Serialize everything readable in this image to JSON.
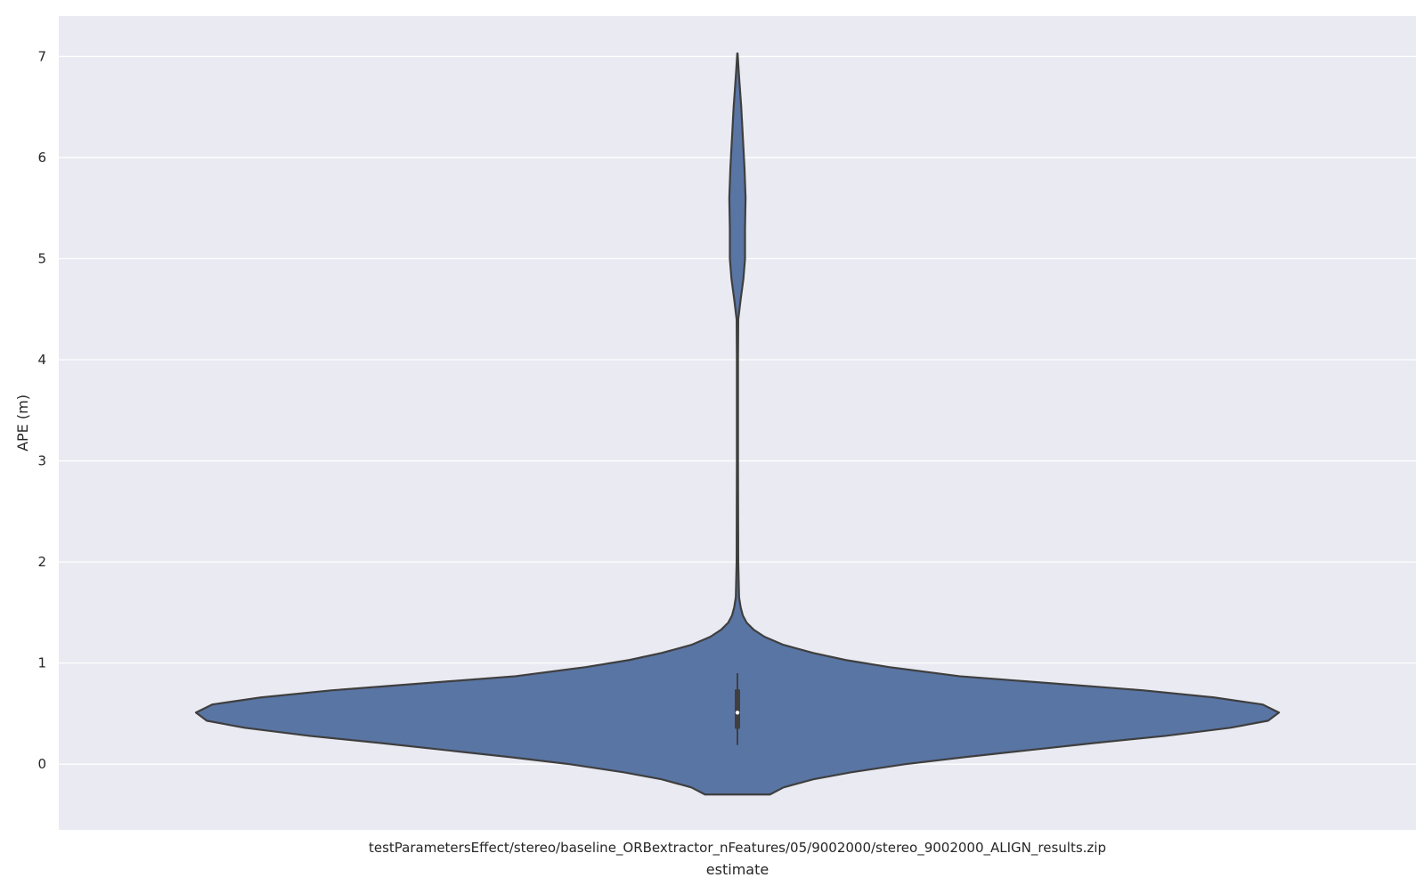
{
  "chart_data": {
    "type": "violin",
    "xlabel": "estimate",
    "ylabel": "APE (m)",
    "categories": [
      "testParametersEffect/stereo/baseline_ORBextractor_nFeatures/05/9002000/stereo_9002000_ALIGN_results.zip"
    ],
    "ylim": [
      -0.65,
      7.4
    ],
    "yticks": [
      0,
      1,
      2,
      3,
      4,
      5,
      6,
      7
    ],
    "grid": true,
    "legend": "none",
    "colors": {
      "background": "#eaeaf2",
      "grid": "#ffffff",
      "violin_fill": "#5975a4",
      "outline": "#3f3f3f",
      "median": "#ffffff"
    },
    "violin": {
      "value_range": [
        -0.3,
        7.03
      ],
      "density_profile": [
        [
          -0.3,
          0.06
        ],
        [
          -0.23,
          0.085
        ],
        [
          -0.15,
          0.14
        ],
        [
          -0.08,
          0.21
        ],
        [
          0.0,
          0.31
        ],
        [
          0.07,
          0.42
        ],
        [
          0.14,
          0.54
        ],
        [
          0.21,
          0.66
        ],
        [
          0.28,
          0.79
        ],
        [
          0.36,
          0.91
        ],
        [
          0.43,
          0.98
        ],
        [
          0.51,
          1.0
        ],
        [
          0.59,
          0.97
        ],
        [
          0.66,
          0.88
        ],
        [
          0.73,
          0.75
        ],
        [
          0.8,
          0.58
        ],
        [
          0.87,
          0.41
        ],
        [
          0.96,
          0.28
        ],
        [
          1.03,
          0.2
        ],
        [
          1.1,
          0.14
        ],
        [
          1.18,
          0.085
        ],
        [
          1.26,
          0.05
        ],
        [
          1.33,
          0.03
        ],
        [
          1.4,
          0.017
        ],
        [
          1.47,
          0.01
        ],
        [
          1.55,
          0.006
        ],
        [
          1.65,
          0.003
        ],
        [
          2.0,
          0.0015
        ],
        [
          3.0,
          0.001
        ],
        [
          4.0,
          0.001
        ],
        [
          4.4,
          0.0015
        ],
        [
          4.6,
          0.006
        ],
        [
          4.8,
          0.011
        ],
        [
          5.0,
          0.014
        ],
        [
          5.3,
          0.014
        ],
        [
          5.6,
          0.015
        ],
        [
          5.9,
          0.013
        ],
        [
          6.2,
          0.01
        ],
        [
          6.5,
          0.007
        ],
        [
          6.8,
          0.003
        ],
        [
          7.03,
          0.0003
        ]
      ]
    },
    "box": {
      "whisker_low": 0.19,
      "q1": 0.35,
      "median": 0.51,
      "q3": 0.74,
      "whisker_high": 0.9
    }
  }
}
